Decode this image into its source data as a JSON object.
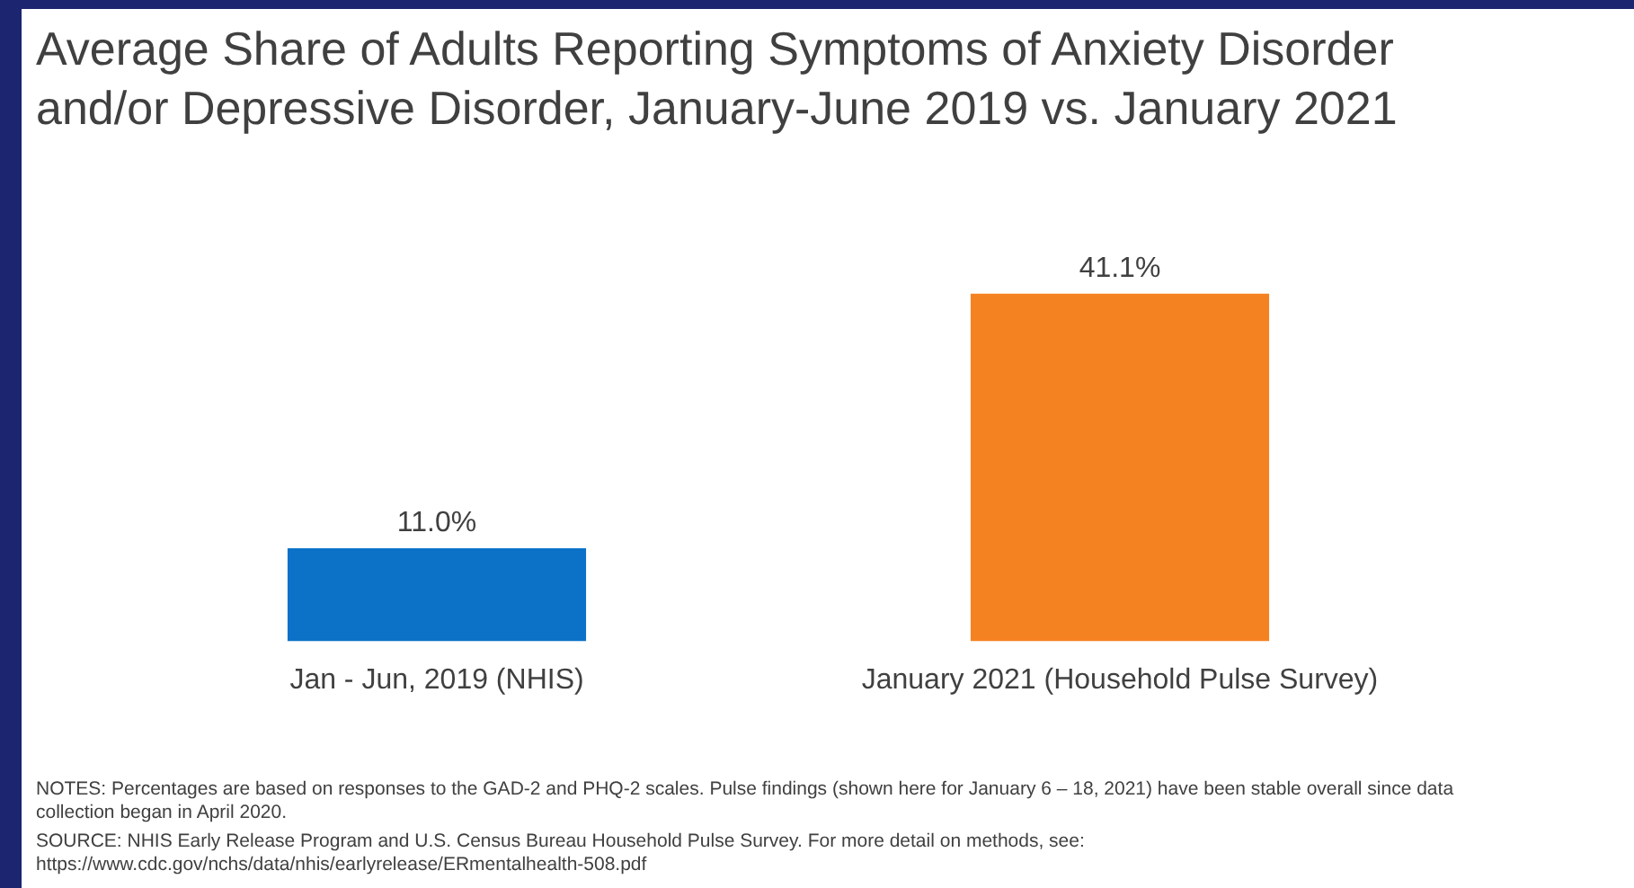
{
  "chart_data": {
    "type": "bar",
    "title": "Average Share of Adults Reporting Symptoms of Anxiety Disorder and/or Depressive Disorder, January-June 2019 vs. January 2021",
    "categories": [
      "Jan - Jun, 2019 (NHIS)",
      "January 2021 (Household Pulse Survey)"
    ],
    "values": [
      11.0,
      41.1
    ],
    "colors": [
      "#0b72c8",
      "#f58220"
    ],
    "value_labels": [
      "11.0%",
      "41.1%"
    ],
    "grid": false,
    "legend": false,
    "annotations": [
      "NOTES: Percentages are based on responses to the GAD-2 and PHQ-2 scales. Pulse findings (shown here for January 6 – 18, 2021) have been stable overall since data collection began in April 2020.",
      "SOURCE: NHIS Early Release Program and U.S. Census Bureau Household Pulse Survey.  For more detail on methods, see: https://www.cdc.gov/nchs/data/nhis/earlyrelease/ERmentalhealth-508.pdf"
    ]
  }
}
